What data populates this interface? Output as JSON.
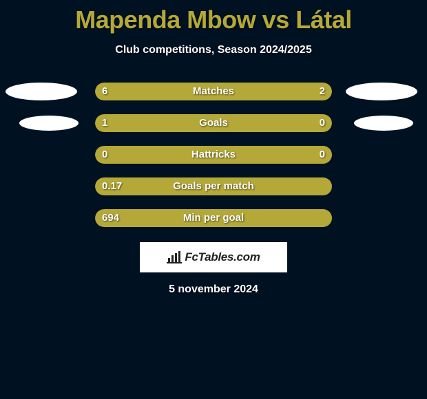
{
  "header": {
    "title": "Mapenda Mbow vs Látal",
    "subtitle": "Club competitions, Season 2024/2025"
  },
  "colors": {
    "left_bar": "#b4a938",
    "right_bar": "#b4a938",
    "background": "#001122",
    "title_color": "#b4a938"
  },
  "stats": [
    {
      "label": "Matches",
      "left_val": "6",
      "right_val": "2",
      "left_pct": 72,
      "right_pct": 28,
      "show_ovals": "big"
    },
    {
      "label": "Goals",
      "left_val": "1",
      "right_val": "0",
      "left_pct": 76,
      "right_pct": 24,
      "show_ovals": "small"
    },
    {
      "label": "Hattricks",
      "left_val": "0",
      "right_val": "0",
      "left_pct": 100,
      "right_pct": 0,
      "show_ovals": "none"
    },
    {
      "label": "Goals per match",
      "left_val": "0.17",
      "right_val": "",
      "left_pct": 100,
      "right_pct": 0,
      "show_ovals": "none"
    },
    {
      "label": "Min per goal",
      "left_val": "694",
      "right_val": "",
      "left_pct": 100,
      "right_pct": 0,
      "show_ovals": "none"
    }
  ],
  "footer": {
    "site_label": "FcTables.com",
    "date": "5 november 2024"
  }
}
